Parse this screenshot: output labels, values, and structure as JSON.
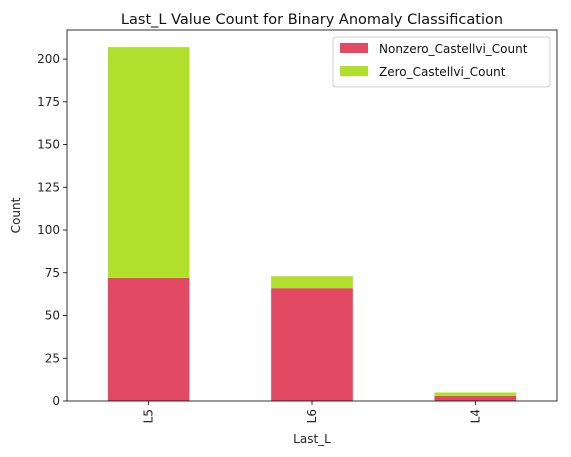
{
  "chart_data": {
    "type": "bar",
    "stacked": true,
    "title": "Last_L Value Count for Binary Anomaly Classification",
    "xlabel": "Last_L",
    "ylabel": "Count",
    "categories": [
      "L5",
      "L6",
      "L4"
    ],
    "series": [
      {
        "name": "Nonzero_Castellvi_Count",
        "values": [
          72,
          66,
          3
        ],
        "color": "#e24a63"
      },
      {
        "name": "Zero_Castellvi_Count",
        "values": [
          135,
          7,
          2
        ],
        "color": "#b0e02b"
      }
    ],
    "ylim": [
      0,
      217
    ],
    "yticks": [
      0,
      25,
      50,
      75,
      100,
      125,
      150,
      175,
      200
    ],
    "grid": false,
    "legend_position": "top-right"
  }
}
